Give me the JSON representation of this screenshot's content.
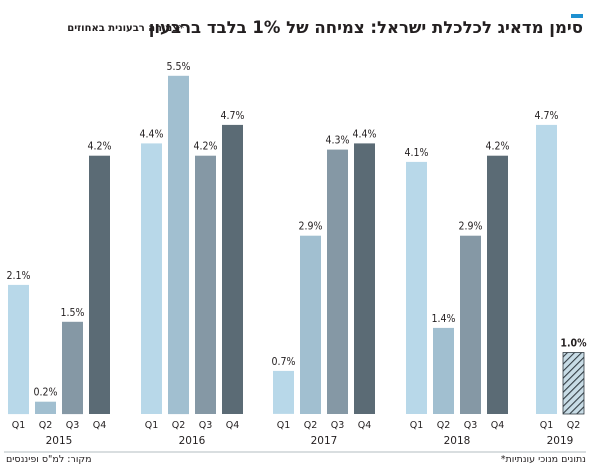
{
  "title": "סימן מדאיג לכלכלת ישראל: צמיחה של 1% בלבד ברבעון",
  "subtitle": "צמיחה רבעונית באחוזים*",
  "footnote_left": "מקור: למ\"ס ופיננסים",
  "footnote_right": "*נתונים מנוכי עונתיות",
  "colors": {
    "q1": "#b8d8e9",
    "q2": "#a1bfd0",
    "q3": "#8598a5",
    "q4": "#5b6b75",
    "estimate": "#c8dce6",
    "accent": "#1e90d0",
    "baseline": "#9aa6ad"
  },
  "chart_data": {
    "type": "bar",
    "ylim": [
      0,
      6
    ],
    "groups": [
      {
        "year": "2015",
        "bars": [
          {
            "quarter": "Q1",
            "value": 2.1,
            "label": "2.1%"
          },
          {
            "quarter": "Q2",
            "value": 0.2,
            "label": "0.2%"
          },
          {
            "quarter": "Q3",
            "value": 1.5,
            "label": "1.5%"
          },
          {
            "quarter": "Q4",
            "value": 4.2,
            "label": "4.2%"
          }
        ]
      },
      {
        "year": "2016",
        "bars": [
          {
            "quarter": "Q1",
            "value": 4.4,
            "label": "4.4%"
          },
          {
            "quarter": "Q2",
            "value": 5.5,
            "label": "5.5%"
          },
          {
            "quarter": "Q3",
            "value": 4.2,
            "label": "4.2%"
          },
          {
            "quarter": "Q4",
            "value": 4.7,
            "label": "4.7%"
          }
        ]
      },
      {
        "year": "2017",
        "bars": [
          {
            "quarter": "Q1",
            "value": 0.7,
            "label": "0.7%"
          },
          {
            "quarter": "Q2",
            "value": 2.9,
            "label": "2.9%"
          },
          {
            "quarter": "Q3",
            "value": 4.3,
            "label": "4.3%"
          },
          {
            "quarter": "Q4",
            "value": 4.4,
            "label": "4.4%"
          }
        ]
      },
      {
        "year": "2018",
        "bars": [
          {
            "quarter": "Q1",
            "value": 4.1,
            "label": "4.1%"
          },
          {
            "quarter": "Q2",
            "value": 1.4,
            "label": "1.4%"
          },
          {
            "quarter": "Q3",
            "value": 2.9,
            "label": "2.9%"
          },
          {
            "quarter": "Q4",
            "value": 4.2,
            "label": "4.2%"
          }
        ]
      },
      {
        "year": "2019",
        "bars": [
          {
            "quarter": "Q1",
            "value": 4.7,
            "label": "4.7%"
          },
          {
            "quarter": "Q2",
            "value": 1.0,
            "label": "1.0%",
            "hatched": true
          }
        ]
      }
    ]
  }
}
